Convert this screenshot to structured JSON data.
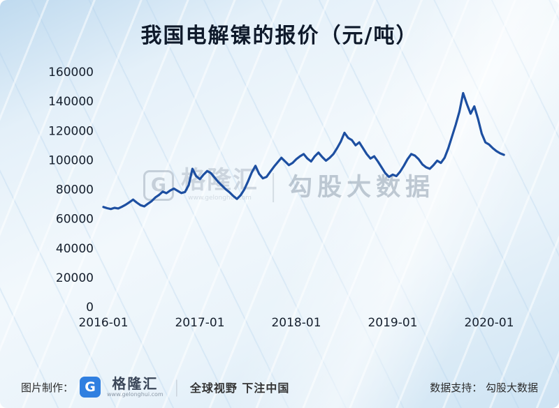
{
  "page": {
    "title": "我国电解镍的报价（元/吨）"
  },
  "watermark": {
    "logo_letter": "G",
    "brand": "格隆汇",
    "url": "www.gelonghui.com",
    "divider": "|",
    "name": "勾股大数据"
  },
  "footer": {
    "made_by_label": "图片制作：",
    "logo_letter": "G",
    "brand": "格隆汇",
    "brand_url": "www.gelonghui.com",
    "divider": "|",
    "slogan": "全球视野 下注中国",
    "data_support": "数据支持： 勾股大数据"
  },
  "chart_data": {
    "type": "line",
    "title": "我国电解镍的报价（元/吨）",
    "ylabel": "",
    "xlabel": "",
    "ylim": [
      0,
      160000
    ],
    "y_ticks": [
      160000,
      140000,
      120000,
      100000,
      80000,
      60000,
      40000,
      20000,
      0
    ],
    "x_ticks": [
      2016,
      2017,
      2018,
      2019,
      2020
    ],
    "x_tick_labels": [
      "2016-01",
      "2017-01",
      "2018-01",
      "2019-01",
      "2020-01"
    ],
    "x_start": 2016.0,
    "x_step": 0.0384615,
    "line_color": "#1d4fa1",
    "grid": false,
    "legend": false,
    "values": [
      68000,
      67200,
      66600,
      67400,
      67000,
      68200,
      69500,
      71200,
      73000,
      71000,
      69200,
      68400,
      70200,
      72000,
      74500,
      76200,
      78500,
      77400,
      79200,
      80500,
      79000,
      77500,
      78200,
      83000,
      94000,
      89000,
      87000,
      90000,
      92500,
      91000,
      88000,
      85000,
      82500,
      80000,
      78000,
      75500,
      73500,
      76000,
      80000,
      85500,
      91500,
      96000,
      90500,
      87500,
      88500,
      92000,
      95500,
      98500,
      101500,
      99000,
      96500,
      98000,
      100500,
      102500,
      104000,
      101000,
      99000,
      102500,
      105000,
      102000,
      99500,
      101500,
      104000,
      108000,
      112500,
      118500,
      115000,
      113500,
      110000,
      112000,
      108000,
      104000,
      101000,
      102500,
      99000,
      95000,
      91000,
      88500,
      90000,
      89000,
      92000,
      96000,
      100500,
      104000,
      103000,
      100500,
      97000,
      95000,
      94000,
      96500,
      99500,
      98000,
      101500,
      108000,
      116000,
      124000,
      133000,
      145500,
      138000,
      131500,
      136500,
      128000,
      118000,
      112000,
      110500,
      108000,
      106000,
      104500,
      103500
    ]
  }
}
